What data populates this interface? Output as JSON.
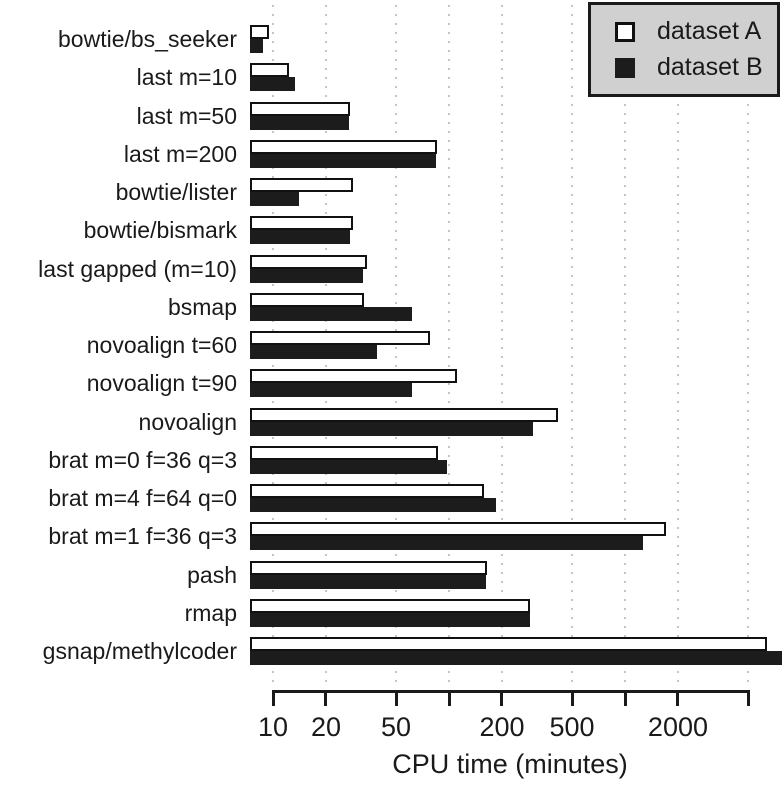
{
  "chart_data": {
    "type": "bar",
    "orientation": "horizontal",
    "x_scale": "log",
    "xlabel": "CPU time (minutes)",
    "grid": "vertical-dotted",
    "legend_position": "top-right",
    "xlim": [
      7.4,
      9500
    ],
    "categories": [
      "bowtie/bs_seeker",
      "last m=10",
      "last m=50",
      "last m=200",
      "bowtie/lister",
      "bowtie/bismark",
      "last gapped (m=10)",
      "bsmap",
      "novoalign t=60",
      "novoalign t=90",
      "novoalign",
      "brat m=0 f=36 q=3",
      "brat m=4 f=64 q=0",
      "brat m=1 f=36 q=3",
      "pash",
      "rmap",
      "gsnap/methylcoder"
    ],
    "series": [
      {
        "name": "dataset A",
        "fill": "#ffffff",
        "values": [
          9.5,
          12.3,
          27.5,
          86,
          28.5,
          28.5,
          34,
          33,
          78,
          111,
          415,
          87,
          158,
          1700,
          165,
          288,
          6400
        ]
      },
      {
        "name": "dataset B",
        "fill": "#1c1c1c",
        "values": [
          8.8,
          13.3,
          27,
          84,
          14,
          27.5,
          32.5,
          62,
          39,
          62,
          300,
          97,
          185,
          1265,
          162,
          288,
          9500
        ]
      }
    ],
    "x_ticks": [
      {
        "value": 10,
        "label": "10"
      },
      {
        "value": 20,
        "label": "20"
      },
      {
        "value": 50,
        "label": "50"
      },
      {
        "value": 100,
        "label": ""
      },
      {
        "value": 200,
        "label": "200"
      },
      {
        "value": 500,
        "label": "500"
      },
      {
        "value": 1000,
        "label": ""
      },
      {
        "value": 2000,
        "label": "2000"
      },
      {
        "value": 5000,
        "label": ""
      }
    ]
  },
  "colors": {
    "bar_border": "#111111",
    "grid_dot": "#c4c4c4",
    "axis": "#1a1a1a",
    "text": "#1a1a1a",
    "legend_bg": "#d0d0d0"
  }
}
